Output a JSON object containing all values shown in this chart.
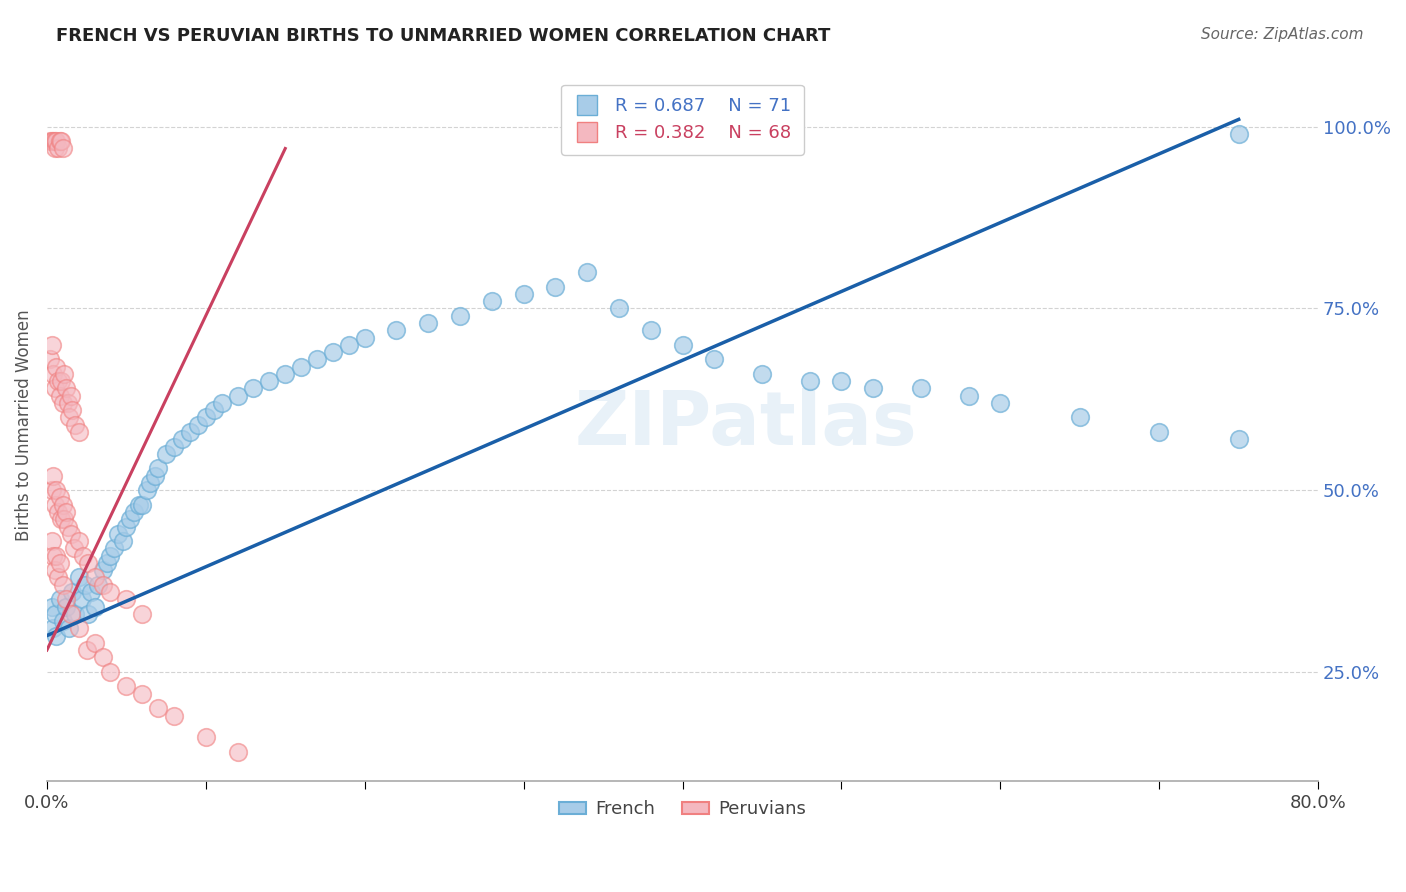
{
  "title": "FRENCH VS PERUVIAN BIRTHS TO UNMARRIED WOMEN CORRELATION CHART",
  "source": "Source: ZipAtlas.com",
  "ylabel": "Births to Unmarried Women",
  "watermark": "ZIPatlas",
  "french_color_face": "#a8cce8",
  "french_color_edge": "#6baed6",
  "peruvian_color_face": "#f4b8c0",
  "peruvian_color_edge": "#f08080",
  "french_line_color": "#1a5fa8",
  "peruvian_line_color": "#c94060",
  "background_color": "#ffffff",
  "grid_color": "#c8c8c8",
  "legend_blue_label": "R = 0.687    N = 71",
  "legend_pink_label": "R = 0.382    N = 68",
  "legend_french": "French",
  "legend_peruvian": "Peruvians",
  "xlim": [
    0.0,
    80.0
  ],
  "ylim": [
    10.0,
    108.0
  ],
  "xtick_positions": [
    0.0,
    10.0,
    20.0,
    30.0,
    40.0,
    50.0,
    60.0,
    70.0,
    80.0
  ],
  "xtick_labels_shown": [
    "0.0%",
    "",
    "",
    "",
    "",
    "",
    "",
    "",
    "80.0%"
  ],
  "ytick_positions": [
    25.0,
    50.0,
    75.0,
    100.0
  ],
  "ytick_labels": [
    "25.0%",
    "50.0%",
    "75.0%",
    "100.0%"
  ],
  "french_trend_x": [
    0.0,
    75.0
  ],
  "french_trend_y": [
    30.0,
    101.0
  ],
  "peruvian_trend_x": [
    0.0,
    15.0
  ],
  "peruvian_trend_y": [
    28.0,
    97.0
  ],
  "french_scatter_x": [
    0.3,
    0.4,
    0.5,
    0.6,
    0.8,
    1.0,
    1.2,
    1.4,
    1.6,
    1.8,
    2.0,
    2.2,
    2.4,
    2.6,
    2.8,
    3.0,
    3.2,
    3.5,
    3.8,
    4.0,
    4.2,
    4.5,
    4.8,
    5.0,
    5.2,
    5.5,
    5.8,
    6.0,
    6.3,
    6.5,
    6.8,
    7.0,
    7.5,
    8.0,
    8.5,
    9.0,
    9.5,
    10.0,
    10.5,
    11.0,
    12.0,
    13.0,
    14.0,
    15.0,
    16.0,
    17.0,
    18.0,
    19.0,
    20.0,
    22.0,
    24.0,
    26.0,
    28.0,
    30.0,
    32.0,
    34.0,
    36.0,
    38.0,
    40.0,
    42.0,
    45.0,
    48.0,
    50.0,
    52.0,
    55.0,
    58.0,
    60.0,
    65.0,
    70.0,
    75.0,
    75.0
  ],
  "french_scatter_y": [
    34,
    31,
    33,
    30,
    35,
    32,
    34,
    31,
    36,
    33,
    38,
    35,
    37,
    33,
    36,
    34,
    37,
    39,
    40,
    41,
    42,
    44,
    43,
    45,
    46,
    47,
    48,
    48,
    50,
    51,
    52,
    53,
    55,
    56,
    57,
    58,
    59,
    60,
    61,
    62,
    63,
    64,
    65,
    66,
    67,
    68,
    69,
    70,
    71,
    72,
    73,
    74,
    76,
    77,
    78,
    80,
    75,
    72,
    70,
    68,
    66,
    65,
    65,
    64,
    64,
    63,
    62,
    60,
    58,
    57,
    99
  ],
  "peruvian_scatter_x": [
    0.2,
    0.3,
    0.4,
    0.5,
    0.5,
    0.6,
    0.7,
    0.8,
    0.9,
    1.0,
    0.2,
    0.3,
    0.4,
    0.5,
    0.6,
    0.7,
    0.8,
    0.9,
    1.0,
    1.1,
    1.2,
    1.3,
    1.4,
    1.5,
    1.6,
    1.8,
    2.0,
    0.3,
    0.4,
    0.5,
    0.6,
    0.7,
    0.8,
    0.9,
    1.0,
    1.1,
    1.2,
    1.3,
    1.5,
    1.7,
    2.0,
    2.3,
    2.6,
    3.0,
    3.5,
    4.0,
    5.0,
    6.0,
    0.3,
    0.4,
    0.5,
    0.6,
    0.7,
    0.8,
    1.0,
    1.2,
    1.5,
    2.0,
    2.5,
    3.0,
    3.5,
    4.0,
    5.0,
    6.0,
    7.0,
    8.0,
    10.0,
    12.0
  ],
  "peruvian_scatter_y": [
    98,
    98,
    98,
    97,
    98,
    98,
    97,
    98,
    98,
    97,
    68,
    70,
    66,
    64,
    67,
    65,
    63,
    65,
    62,
    66,
    64,
    62,
    60,
    63,
    61,
    59,
    58,
    50,
    52,
    48,
    50,
    47,
    49,
    46,
    48,
    46,
    47,
    45,
    44,
    42,
    43,
    41,
    40,
    38,
    37,
    36,
    35,
    33,
    43,
    41,
    39,
    41,
    38,
    40,
    37,
    35,
    33,
    31,
    28,
    29,
    27,
    25,
    23,
    22,
    20,
    19,
    16,
    14
  ]
}
